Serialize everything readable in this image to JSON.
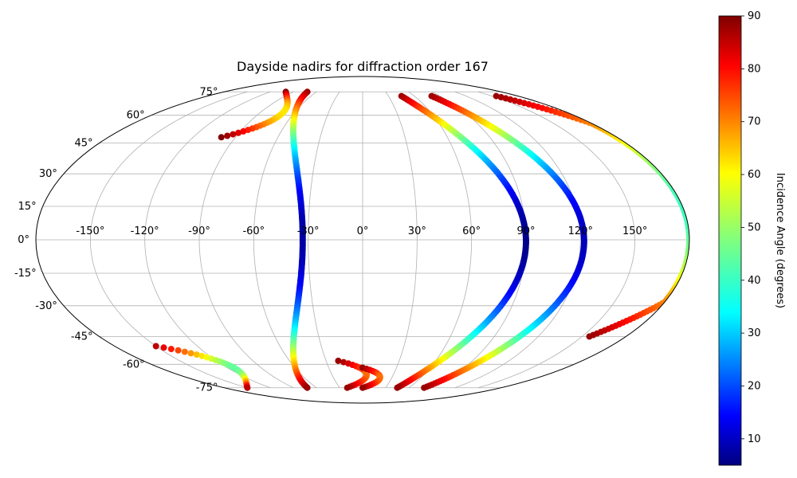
{
  "chart_data": {
    "type": "scatter",
    "title": "Dayside nadirs for diffraction order 167",
    "projection": "mollweide",
    "grid": true,
    "x_ticks": [
      "-150°",
      "-120°",
      "-90°",
      "-60°",
      "-30°",
      "0°",
      "30°",
      "60°",
      "90°",
      "120°",
      "150°"
    ],
    "y_ticks": [
      "75°",
      "60°",
      "45°",
      "30°",
      "15°",
      "0°",
      "-15°",
      "-30°",
      "-45°",
      "-60°",
      "-75°"
    ],
    "colorbar": {
      "label": "Incidence Angle (degrees)",
      "range": [
        5,
        90
      ],
      "ticks": [
        "10",
        "20",
        "30",
        "40",
        "50",
        "60",
        "70",
        "80",
        "90"
      ],
      "colormap": "jet"
    },
    "tracks": [
      {
        "lon0": -100,
        "lat0": 75,
        "lat1": 48,
        "lon_amp": 50,
        "inc_min": 60,
        "inc_max": 90
      },
      {
        "lon0": -72,
        "lat0": 75,
        "lat1": -75,
        "lon_amp": 65,
        "inc_min": 8,
        "inc_max": 88
      },
      {
        "lon0": -20,
        "lat0": -58,
        "lat1": -75,
        "lon_amp": 40,
        "inc_min": 70,
        "inc_max": 88
      },
      {
        "lon0": 0,
        "lat0": -62,
        "lat1": -75,
        "lon_amp": 30,
        "inc_min": 70,
        "inc_max": 88
      },
      {
        "lon0": 45,
        "lat0": 72,
        "lat1": -75,
        "lon_amp": 75,
        "inc_min": 6,
        "inc_max": 88
      },
      {
        "lon0": 80,
        "lat0": 72,
        "lat1": -75,
        "lon_amp": 70,
        "inc_min": 10,
        "inc_max": 88
      },
      {
        "lon0": 155,
        "lat0": 72,
        "lat1": -45,
        "lon_amp": 85,
        "inc_min": 42,
        "inc_max": 88
      },
      {
        "lon0": -150,
        "lat0": -50,
        "lat1": -75,
        "lon_amp": 60,
        "inc_min": 45,
        "inc_max": 85
      }
    ]
  }
}
